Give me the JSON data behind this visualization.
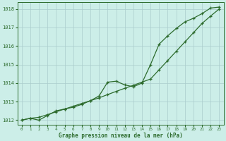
{
  "title": "Graphe pression niveau de la mer (hPa)",
  "bg_color": "#cceee8",
  "grid_color": "#aacccc",
  "line_color": "#2d6b2d",
  "x_values": [
    0,
    1,
    2,
    3,
    4,
    5,
    6,
    7,
    8,
    9,
    10,
    11,
    12,
    13,
    14,
    15,
    16,
    17,
    18,
    19,
    20,
    21,
    22,
    23
  ],
  "line1_y": [
    1012.0,
    1012.1,
    1012.15,
    1012.3,
    1012.45,
    1012.6,
    1012.75,
    1012.9,
    1013.05,
    1013.2,
    1013.38,
    1013.55,
    1013.72,
    1013.88,
    1014.05,
    1014.22,
    1014.72,
    1015.22,
    1015.72,
    1016.22,
    1016.72,
    1017.22,
    1017.62,
    1018.0
  ],
  "line2_y": [
    1012.0,
    1012.1,
    1012.0,
    1012.25,
    1012.5,
    1012.6,
    1012.7,
    1012.85,
    1013.05,
    1013.3,
    1014.05,
    1014.1,
    1013.9,
    1013.8,
    1014.0,
    1015.0,
    1016.1,
    1016.55,
    1016.95,
    1017.3,
    1017.5,
    1017.75,
    1018.05,
    1018.1
  ],
  "ylim": [
    1011.75,
    1018.35
  ],
  "yticks": [
    1012,
    1013,
    1014,
    1015,
    1016,
    1017,
    1018
  ],
  "xlim": [
    -0.5,
    23.5
  ],
  "xticks": [
    0,
    1,
    2,
    3,
    4,
    5,
    6,
    7,
    8,
    9,
    10,
    11,
    12,
    13,
    14,
    15,
    16,
    17,
    18,
    19,
    20,
    21,
    22,
    23
  ]
}
